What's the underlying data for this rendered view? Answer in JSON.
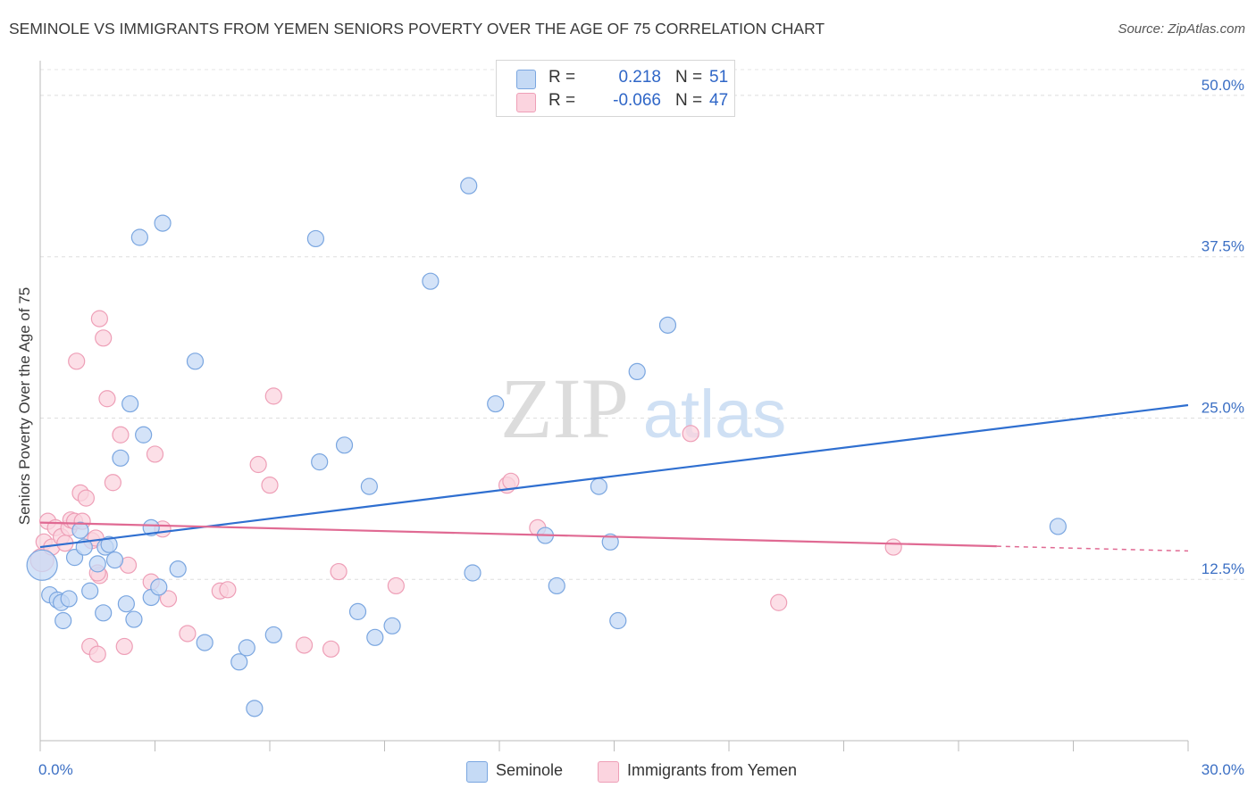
{
  "header": {
    "title": "SEMINOLE VS IMMIGRANTS FROM YEMEN SENIORS POVERTY OVER THE AGE OF 75 CORRELATION CHART",
    "source": "Source: ZipAtlas.com"
  },
  "legend": {
    "r_label": "R =",
    "n_label": "N =",
    "rows": [
      {
        "r": "0.218",
        "n": "51"
      },
      {
        "r": "-0.066",
        "n": "47"
      }
    ]
  },
  "watermark": {
    "zip": "ZIP",
    "atlas": "atlas"
  },
  "chart_data": {
    "type": "scatter",
    "title": "SEMINOLE VS IMMIGRANTS FROM YEMEN SENIORS POVERTY OVER THE AGE OF 75 CORRELATION CHART",
    "xlabel": "",
    "ylabel": "Seniors Poverty Over the Age of 75",
    "xlim": [
      0,
      30
    ],
    "ylim": [
      0,
      52
    ],
    "x_tick_labels": [
      "0.0%",
      "30.0%"
    ],
    "y_ticks": [
      {
        "value": 12.5,
        "label": "12.5%"
      },
      {
        "value": 25.0,
        "label": "25.0%"
      },
      {
        "value": 37.5,
        "label": "37.5%"
      },
      {
        "value": 50.0,
        "label": "50.0%"
      }
    ],
    "series": [
      {
        "name": "Seminole",
        "color": "#8fb8ea",
        "fill": "#c5daf5",
        "stroke": "#7aa6e0",
        "trend_color": "#2f6fd0",
        "r": 0.218,
        "n": 51,
        "trend": {
          "x0": 0,
          "y0": 15.0,
          "x1": 30,
          "y1": 26.0,
          "solid_to": 30
        },
        "points": [
          [
            0.05,
            13.6
          ],
          [
            0.25,
            11.3
          ],
          [
            0.45,
            10.9
          ],
          [
            0.55,
            10.7
          ],
          [
            0.6,
            9.3
          ],
          [
            0.75,
            11.0
          ],
          [
            0.9,
            14.2
          ],
          [
            1.05,
            16.3
          ],
          [
            1.15,
            15.0
          ],
          [
            1.3,
            11.6
          ],
          [
            1.5,
            13.7
          ],
          [
            1.7,
            15.0
          ],
          [
            1.65,
            9.9
          ],
          [
            1.8,
            15.2
          ],
          [
            1.95,
            14.0
          ],
          [
            2.1,
            21.9
          ],
          [
            2.25,
            10.6
          ],
          [
            2.35,
            26.1
          ],
          [
            2.45,
            9.4
          ],
          [
            2.6,
            39.0
          ],
          [
            2.7,
            23.7
          ],
          [
            2.9,
            11.1
          ],
          [
            2.9,
            16.5
          ],
          [
            3.1,
            11.9
          ],
          [
            3.2,
            40.1
          ],
          [
            3.6,
            13.3
          ],
          [
            4.05,
            29.4
          ],
          [
            4.3,
            7.6
          ],
          [
            5.2,
            6.1
          ],
          [
            5.4,
            7.2
          ],
          [
            5.6,
            2.5
          ],
          [
            6.1,
            8.2
          ],
          [
            7.2,
            38.9
          ],
          [
            7.3,
            21.6
          ],
          [
            7.95,
            22.9
          ],
          [
            8.3,
            10.0
          ],
          [
            8.6,
            19.7
          ],
          [
            8.75,
            8.0
          ],
          [
            9.2,
            8.9
          ],
          [
            10.2,
            35.6
          ],
          [
            11.2,
            43.0
          ],
          [
            11.3,
            13.0
          ],
          [
            11.9,
            26.1
          ],
          [
            13.2,
            15.9
          ],
          [
            13.5,
            12.0
          ],
          [
            14.6,
            19.7
          ],
          [
            14.9,
            15.4
          ],
          [
            15.1,
            9.3
          ],
          [
            15.6,
            28.6
          ],
          [
            16.4,
            32.2
          ],
          [
            26.6,
            16.6
          ]
        ]
      },
      {
        "name": "Immigrants from Yemen",
        "color": "#f0a6bd",
        "fill": "#fbd4df",
        "stroke": "#ee9fb7",
        "trend_color": "#e06a93",
        "r": -0.066,
        "n": 47,
        "trend": {
          "x0": 0,
          "y0": 16.9,
          "x1": 30,
          "y1": 14.7,
          "solid_to": 25
        },
        "points": [
          [
            0.05,
            14.0
          ],
          [
            0.1,
            15.4
          ],
          [
            0.2,
            17.0
          ],
          [
            0.3,
            15.0
          ],
          [
            0.4,
            16.5
          ],
          [
            0.55,
            15.8
          ],
          [
            0.65,
            15.3
          ],
          [
            0.75,
            16.5
          ],
          [
            0.8,
            17.1
          ],
          [
            0.9,
            17.0
          ],
          [
            0.95,
            29.4
          ],
          [
            1.05,
            19.2
          ],
          [
            1.1,
            17.0
          ],
          [
            1.2,
            18.8
          ],
          [
            1.3,
            7.3
          ],
          [
            1.35,
            15.5
          ],
          [
            1.45,
            15.7
          ],
          [
            1.5,
            6.7
          ],
          [
            1.55,
            12.8
          ],
          [
            1.5,
            13.0
          ],
          [
            1.55,
            32.7
          ],
          [
            1.65,
            31.2
          ],
          [
            1.75,
            26.5
          ],
          [
            1.9,
            20.0
          ],
          [
            2.1,
            23.7
          ],
          [
            2.2,
            7.3
          ],
          [
            2.3,
            13.6
          ],
          [
            2.9,
            12.3
          ],
          [
            3.0,
            22.2
          ],
          [
            3.2,
            16.4
          ],
          [
            3.35,
            11.0
          ],
          [
            3.85,
            8.3
          ],
          [
            4.7,
            11.6
          ],
          [
            4.9,
            11.7
          ],
          [
            5.7,
            21.4
          ],
          [
            6.0,
            19.8
          ],
          [
            6.1,
            26.7
          ],
          [
            6.9,
            7.4
          ],
          [
            7.6,
            7.1
          ],
          [
            7.8,
            13.1
          ],
          [
            9.3,
            12.0
          ],
          [
            12.2,
            19.8
          ],
          [
            12.3,
            20.1
          ],
          [
            13.0,
            16.5
          ],
          [
            17.0,
            23.8
          ],
          [
            19.3,
            10.7
          ],
          [
            22.3,
            15.0
          ]
        ]
      }
    ]
  },
  "bottom_legend": {
    "items": [
      "Seminole",
      "Immigrants from Yemen"
    ]
  }
}
